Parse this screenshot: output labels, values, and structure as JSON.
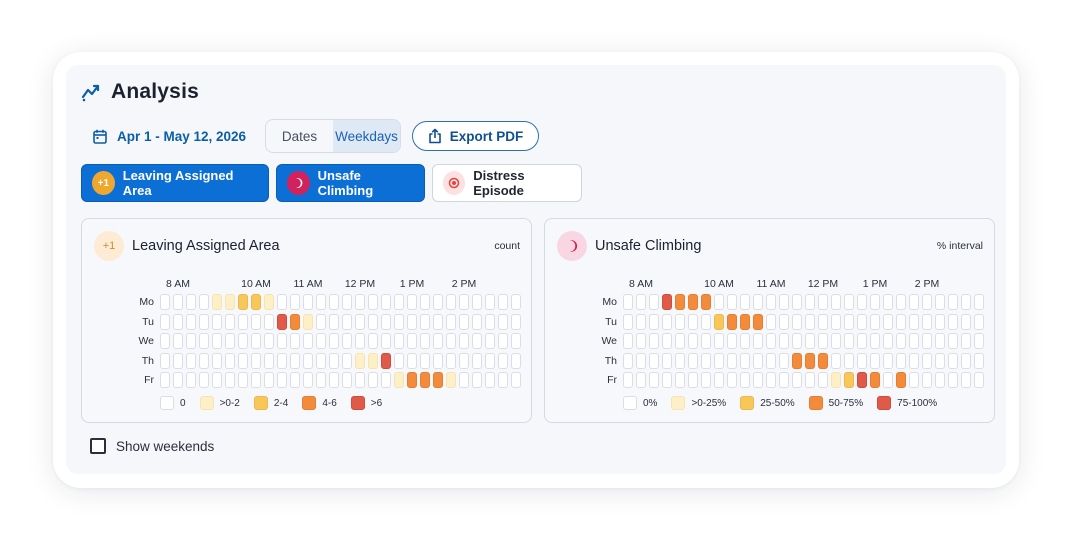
{
  "header": {
    "title": "Analysis",
    "icon": "trend-chart-icon"
  },
  "toolbar": {
    "date_range": "Apr 1 - May 12, 2026",
    "segments": [
      "Dates",
      "Weekdays"
    ],
    "selected_segment": "Weekdays",
    "export_label": "Export PDF"
  },
  "filters": [
    {
      "label": "Leaving Assigned Area",
      "active": true,
      "icon_text": "+1"
    },
    {
      "label": "Unsafe Climbing",
      "active": true
    },
    {
      "label": "Distress Episode",
      "active": false
    }
  ],
  "cards": [
    {
      "title": "Leaving Assigned Area",
      "badge_text": "+1",
      "unit": "count",
      "time_labels": [
        "8 AM",
        "10 AM",
        "11 AM",
        "12 PM",
        "1 PM",
        "2 PM"
      ],
      "days": [
        "Mo",
        "Tu",
        "We",
        "Th",
        "Fr"
      ],
      "levels": [
        [
          0,
          0,
          0,
          0,
          1,
          1,
          2,
          2,
          1,
          0,
          0,
          0,
          0,
          0,
          0,
          0,
          0,
          0,
          0,
          0,
          0,
          0,
          0,
          0,
          0,
          0,
          0,
          0
        ],
        [
          0,
          0,
          0,
          0,
          0,
          0,
          0,
          0,
          0,
          4,
          3,
          1,
          0,
          0,
          0,
          0,
          0,
          0,
          0,
          0,
          0,
          0,
          0,
          0,
          0,
          0,
          0,
          0
        ],
        [
          0,
          0,
          0,
          0,
          0,
          0,
          0,
          0,
          0,
          0,
          0,
          0,
          0,
          0,
          0,
          0,
          0,
          0,
          0,
          0,
          0,
          0,
          0,
          0,
          0,
          0,
          0,
          0
        ],
        [
          0,
          0,
          0,
          0,
          0,
          0,
          0,
          0,
          0,
          0,
          0,
          0,
          0,
          0,
          0,
          1,
          1,
          4,
          0,
          0,
          0,
          0,
          0,
          0,
          0,
          0,
          0,
          0
        ],
        [
          0,
          0,
          0,
          0,
          0,
          0,
          0,
          0,
          0,
          0,
          0,
          0,
          0,
          0,
          0,
          0,
          0,
          0,
          1,
          3,
          3,
          3,
          1,
          0,
          0,
          0,
          0,
          0
        ]
      ],
      "legend": [
        "0",
        ">0-2",
        "2-4",
        "4-6",
        ">6"
      ]
    },
    {
      "title": "Unsafe Climbing",
      "unit": "% interval",
      "time_labels": [
        "8 AM",
        "10 AM",
        "11 AM",
        "12 PM",
        "1 PM",
        "2 PM"
      ],
      "days": [
        "Mo",
        "Tu",
        "We",
        "Th",
        "Fr"
      ],
      "levels": [
        [
          0,
          0,
          0,
          4,
          3,
          3,
          3,
          0,
          0,
          0,
          0,
          0,
          0,
          0,
          0,
          0,
          0,
          0,
          0,
          0,
          0,
          0,
          0,
          0,
          0,
          0,
          0,
          0
        ],
        [
          0,
          0,
          0,
          0,
          0,
          0,
          0,
          2,
          3,
          3,
          3,
          0,
          0,
          0,
          0,
          0,
          0,
          0,
          0,
          0,
          0,
          0,
          0,
          0,
          0,
          0,
          0,
          0
        ],
        [
          0,
          0,
          0,
          0,
          0,
          0,
          0,
          0,
          0,
          0,
          0,
          0,
          0,
          0,
          0,
          0,
          0,
          0,
          0,
          0,
          0,
          0,
          0,
          0,
          0,
          0,
          0,
          0
        ],
        [
          0,
          0,
          0,
          0,
          0,
          0,
          0,
          0,
          0,
          0,
          0,
          0,
          0,
          3,
          3,
          3,
          0,
          0,
          0,
          0,
          0,
          0,
          0,
          0,
          0,
          0,
          0,
          0
        ],
        [
          0,
          0,
          0,
          0,
          0,
          0,
          0,
          0,
          0,
          0,
          0,
          0,
          0,
          0,
          0,
          0,
          1,
          2,
          4,
          3,
          0,
          3,
          0,
          0,
          0,
          0,
          0,
          0
        ]
      ],
      "legend": [
        "0%",
        ">0-25%",
        "25-50%",
        "50-75%",
        "75-100%"
      ]
    }
  ],
  "colors": {
    "level0": "#ffffff",
    "level1": "#fdf0c8",
    "level2": "#f8c75a",
    "level3": "#f28c3c",
    "level4": "#e05a4a",
    "accent": "#0b6fd6"
  },
  "show_weekends": {
    "label": "Show weekends",
    "checked": false
  }
}
